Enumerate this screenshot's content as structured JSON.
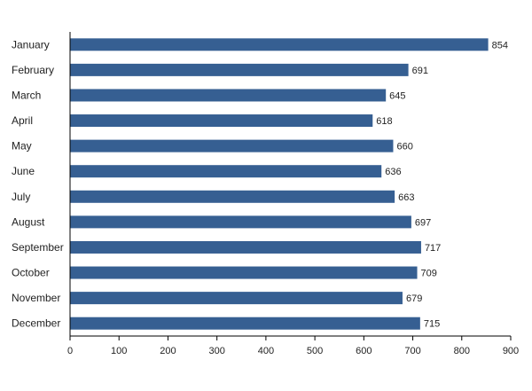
{
  "chart_data": {
    "type": "bar",
    "orientation": "horizontal",
    "categories": [
      "January",
      "February",
      "March",
      "April",
      "May",
      "June",
      "July",
      "August",
      "September",
      "October",
      "November",
      "December"
    ],
    "values": [
      854,
      691,
      645,
      618,
      660,
      636,
      663,
      697,
      717,
      709,
      679,
      715
    ],
    "xlim": [
      0,
      900
    ],
    "xticks": [
      0,
      100,
      200,
      300,
      400,
      500,
      600,
      700,
      800,
      900
    ],
    "bar_color": "#365f92",
    "grid": false,
    "legend": "none",
    "data_labels": true
  }
}
